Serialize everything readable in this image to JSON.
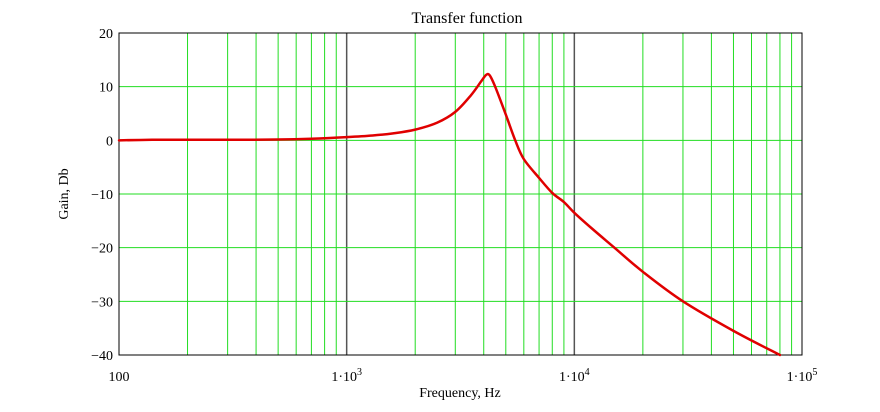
{
  "chart_data": {
    "type": "line",
    "title": "Transfer function",
    "xlabel": "Frequency, Hz",
    "ylabel": "Gain, Db",
    "x_scale": "log",
    "xlim": [
      100,
      100000
    ],
    "ylim": [
      -40,
      20
    ],
    "grid": true,
    "x_ticks": [
      {
        "value": 100,
        "mantissa": "100",
        "exponent": ""
      },
      {
        "value": 1000,
        "mantissa": "1·10",
        "exponent": "3"
      },
      {
        "value": 10000,
        "mantissa": "1·10",
        "exponent": "4"
      },
      {
        "value": 100000,
        "mantissa": "1·10",
        "exponent": "5"
      }
    ],
    "y_ticks": [
      {
        "value": 20,
        "label": "20"
      },
      {
        "value": 10,
        "label": "10"
      },
      {
        "value": 0,
        "label": "0"
      },
      {
        "value": -10,
        "label": "−10"
      },
      {
        "value": -20,
        "label": "−20"
      },
      {
        "value": -30,
        "label": "−30"
      },
      {
        "value": -40,
        "label": "−40"
      }
    ],
    "series": [
      {
        "color": "#e00000",
        "points": [
          [
            100,
            0.0
          ],
          [
            140,
            0.1
          ],
          [
            200,
            0.1
          ],
          [
            300,
            0.1
          ],
          [
            500,
            0.15
          ],
          [
            700,
            0.3
          ],
          [
            1000,
            0.6
          ],
          [
            1300,
            0.9
          ],
          [
            1600,
            1.3
          ],
          [
            2000,
            2.0
          ],
          [
            2500,
            3.3
          ],
          [
            3000,
            5.3
          ],
          [
            3500,
            8.3
          ],
          [
            3900,
            11.0
          ],
          [
            4100,
            12.2
          ],
          [
            4250,
            12.1
          ],
          [
            4500,
            9.9
          ],
          [
            5000,
            4.8
          ],
          [
            5500,
            0.0
          ],
          [
            6000,
            -3.5
          ],
          [
            7000,
            -7.0
          ],
          [
            8000,
            -9.8
          ],
          [
            9000,
            -11.5
          ],
          [
            10000,
            -13.5
          ],
          [
            12000,
            -16.5
          ],
          [
            15000,
            -20.0
          ],
          [
            20000,
            -24.5
          ],
          [
            30000,
            -30.0
          ],
          [
            50000,
            -35.5
          ],
          [
            80000,
            -40.0
          ]
        ]
      }
    ],
    "colors": {
      "grid_minor": "#22dd22",
      "grid_decade": "#555555",
      "frame": "#000000",
      "curve": "#e00000"
    }
  }
}
